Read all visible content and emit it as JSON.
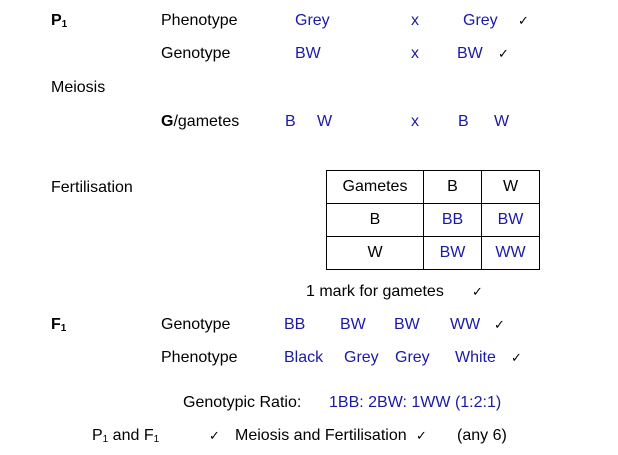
{
  "p1": {
    "label_main": "P",
    "label_sub": "1",
    "phenotype_label": "Phenotype",
    "phenotype_left": "Grey",
    "cross": "x",
    "phenotype_right": "Grey",
    "genotype_label": "Genotype",
    "genotype_left": "BW",
    "genotype_right": "BW"
  },
  "tick": "✓",
  "meiosis": {
    "label": "Meiosis",
    "gametes_label_bold": "G",
    "gametes_label_rest": "/gametes",
    "left_b": "B",
    "left_w": "W",
    "right_b": "B",
    "right_w": "W"
  },
  "fertilisation": {
    "label": "Fertilisation",
    "table": {
      "header": [
        "Gametes",
        "B",
        "W"
      ],
      "rows": [
        [
          "B",
          "BB",
          "BW"
        ],
        [
          "W",
          "BW",
          "WW"
        ]
      ]
    },
    "mark_note": "1 mark for gametes"
  },
  "f1": {
    "label_main": "F",
    "label_sub": "1",
    "genotype_label": "Genotype",
    "genotypes": [
      "BB",
      "BW",
      "BW",
      "WW"
    ],
    "phenotype_label": "Phenotype",
    "phenotypes": [
      "Black",
      "Grey",
      "Grey",
      "White"
    ]
  },
  "ratio": {
    "label": "Genotypic Ratio:",
    "value": "1BB: 2BW: 1WW (1:2:1)"
  },
  "footer": {
    "p_main": "P",
    "p_sub": "1",
    "and_f": " and F",
    "f_sub": "1",
    "meiosis_fert": "Meiosis and Fertilisation",
    "any": "(any 6)"
  },
  "colors": {
    "answer": "#1a1aa6",
    "text": "#000000"
  }
}
